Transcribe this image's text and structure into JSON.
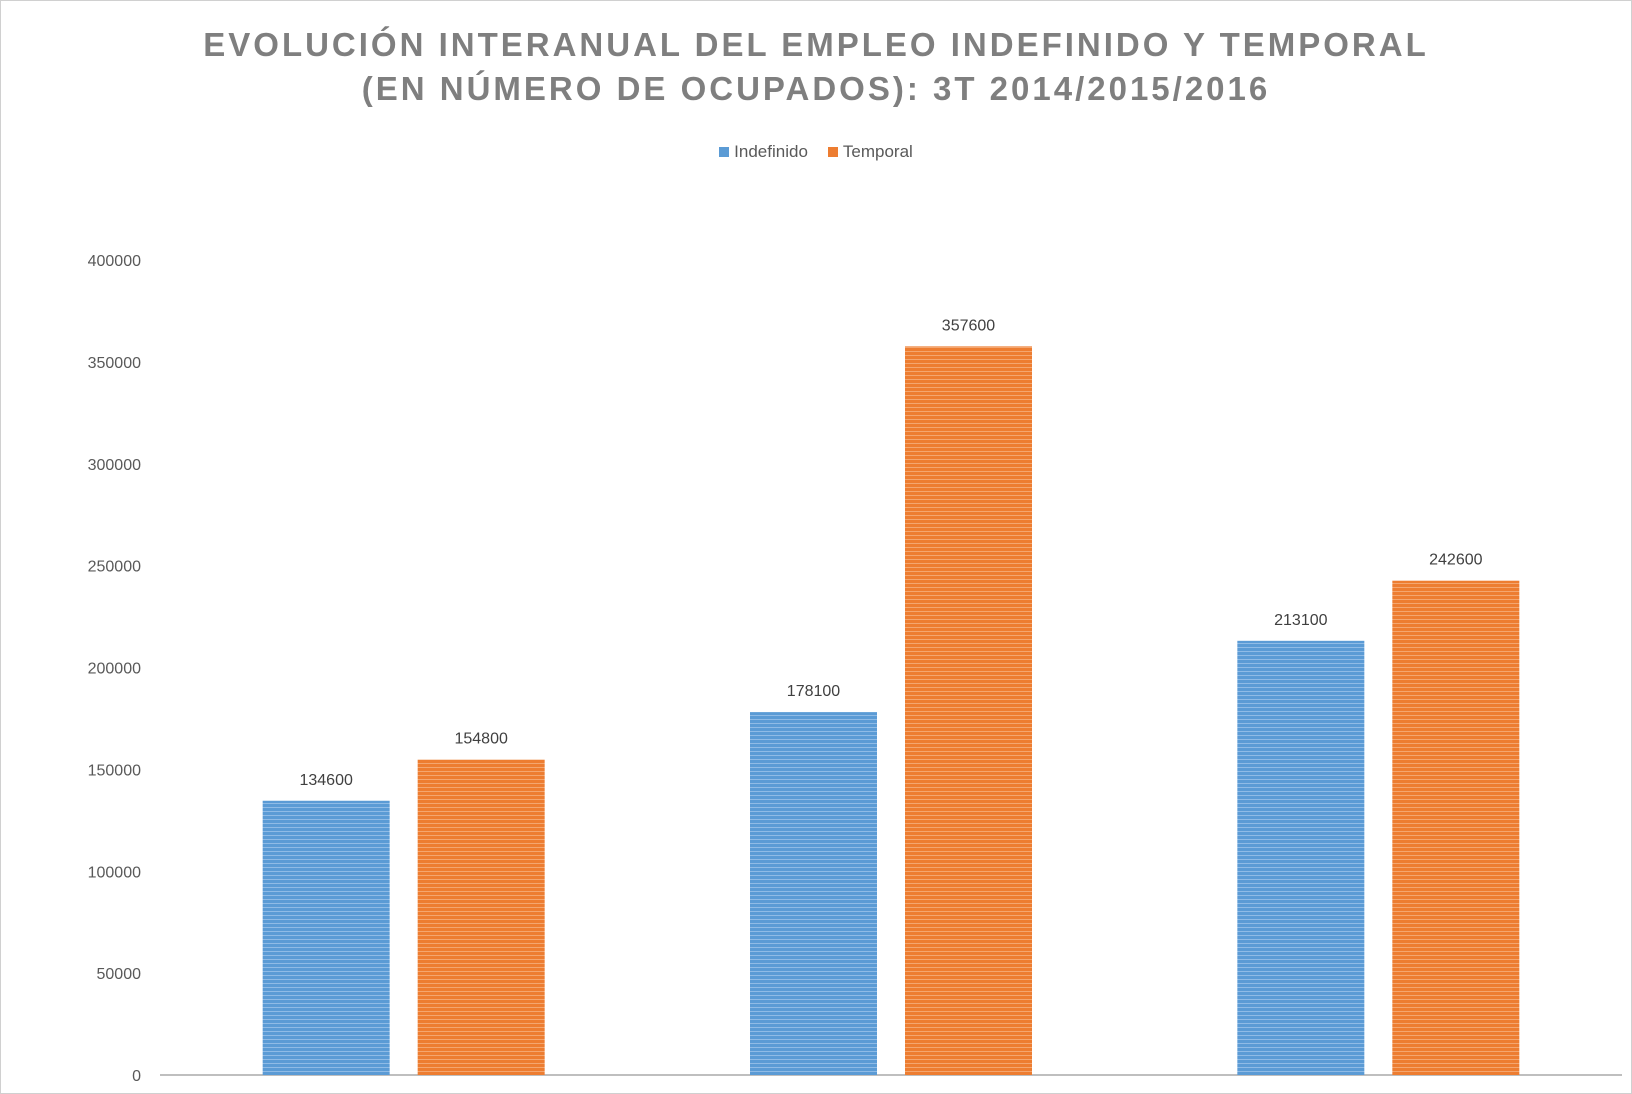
{
  "chart_data": {
    "type": "bar",
    "title_lines": [
      "EVOLUCIÓN INTERANUAL DEL EMPLEO INDEFINIDO Y TEMPORAL",
      "(EN NÚMERO DE OCUPADOS): 3T 2014/2015/2016"
    ],
    "categories": [
      "",
      "",
      ""
    ],
    "series": [
      {
        "name": "Indefinido",
        "color": "#5b9bd5",
        "values": [
          134600,
          178100,
          213100
        ]
      },
      {
        "name": "Temporal",
        "color": "#ed7d31",
        "values": [
          154800,
          357600,
          242600
        ]
      }
    ],
    "ylim": [
      0,
      400000
    ],
    "yticks": [
      0,
      50000,
      100000,
      150000,
      200000,
      250000,
      300000,
      350000,
      400000
    ],
    "grid": false,
    "legend_position": "top"
  }
}
